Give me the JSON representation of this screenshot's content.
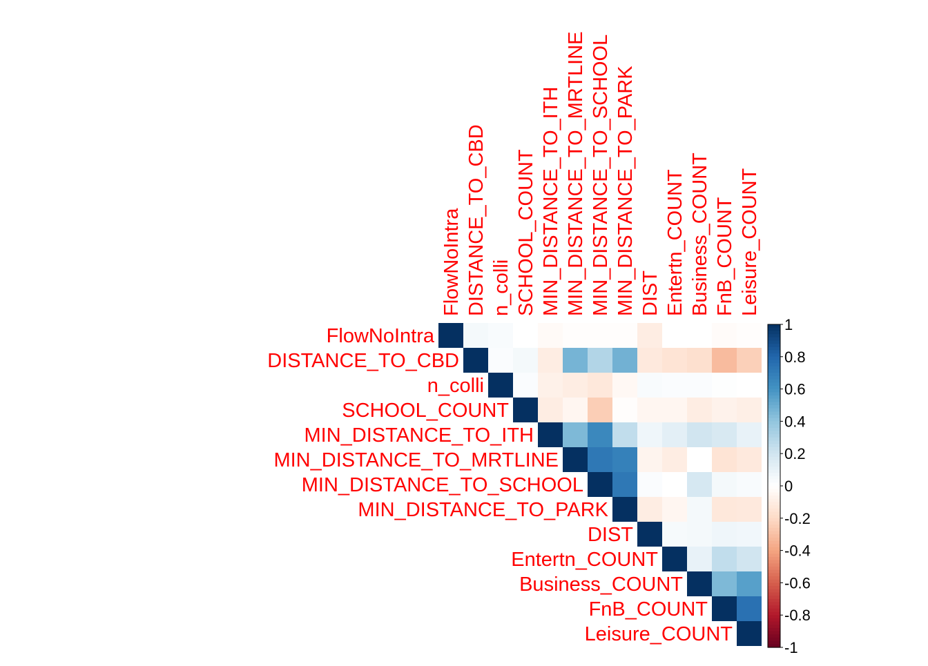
{
  "chart_data": {
    "type": "heatmap",
    "variant": "upper-triangle correlation matrix",
    "variables": [
      "FlowNoIntra",
      "DISTANCE_TO_CBD",
      "n_colli",
      "SCHOOL_COUNT",
      "MIN_DISTANCE_TO_ITH",
      "MIN_DISTANCE_TO_MRTLINE",
      "MIN_DISTANCE_TO_SCHOOL",
      "MIN_DISTANCE_TO_PARK",
      "DIST",
      "Entertn_COUNT",
      "Business_COUNT",
      "FnB_COUNT",
      "Leisure_COUNT"
    ],
    "matrix": [
      [
        1,
        0.05,
        0.03,
        0.0,
        -0.03,
        -0.01,
        -0.01,
        -0.01,
        -0.1,
        0.0,
        0.0,
        -0.02,
        -0.01
      ],
      [
        0.05,
        1,
        0.02,
        0.05,
        -0.1,
        0.47,
        0.3,
        0.48,
        -0.12,
        -0.15,
        -0.17,
        -0.32,
        -0.24
      ],
      [
        0.03,
        0.02,
        1,
        0.02,
        -0.08,
        -0.1,
        -0.13,
        -0.04,
        0.03,
        0.02,
        0.02,
        0.01,
        0.0
      ],
      [
        0.0,
        0.05,
        0.02,
        1,
        -0.1,
        -0.05,
        -0.25,
        -0.01,
        -0.05,
        -0.05,
        -0.1,
        -0.07,
        -0.09
      ],
      [
        -0.03,
        -0.1,
        -0.08,
        -0.1,
        1,
        0.45,
        0.65,
        0.25,
        0.07,
        0.12,
        0.2,
        0.17,
        0.1
      ],
      [
        -0.01,
        0.47,
        -0.1,
        -0.05,
        0.45,
        1,
        0.72,
        0.68,
        -0.06,
        -0.1,
        0.0,
        -0.15,
        -0.12
      ],
      [
        -0.01,
        0.3,
        -0.13,
        -0.25,
        0.65,
        0.72,
        1,
        0.72,
        0.02,
        0.0,
        0.18,
        0.05,
        0.03
      ],
      [
        -0.01,
        0.48,
        -0.04,
        -0.01,
        0.25,
        0.68,
        0.72,
        1,
        -0.1,
        -0.05,
        0.05,
        -0.13,
        -0.12
      ],
      [
        -0.1,
        -0.12,
        0.03,
        -0.05,
        0.07,
        -0.06,
        0.02,
        -0.1,
        1,
        0.04,
        0.05,
        0.07,
        0.06
      ],
      [
        0.0,
        -0.15,
        0.02,
        -0.05,
        0.12,
        -0.1,
        0.0,
        -0.05,
        0.04,
        1,
        0.1,
        0.25,
        0.2
      ],
      [
        0.0,
        -0.17,
        0.02,
        -0.1,
        0.2,
        0.0,
        0.18,
        0.05,
        0.05,
        0.1,
        1,
        0.45,
        0.55
      ],
      [
        -0.02,
        -0.32,
        0.01,
        -0.07,
        0.17,
        -0.15,
        0.05,
        -0.13,
        0.07,
        0.25,
        0.45,
        1,
        0.75
      ],
      [
        -0.01,
        -0.24,
        0.0,
        -0.09,
        0.1,
        -0.12,
        0.03,
        -0.12,
        0.06,
        0.2,
        0.55,
        0.75,
        1
      ]
    ],
    "colorbar": {
      "range": [
        -1,
        1
      ],
      "tick_labels": [
        "1",
        "0.8",
        "0.6",
        "0.4",
        "0.2",
        "0",
        "-0.2",
        "-0.4",
        "-0.6",
        "-0.8",
        "-1"
      ],
      "tick_values": [
        1,
        0.8,
        0.6,
        0.4,
        0.2,
        0,
        -0.2,
        -0.4,
        -0.6,
        -0.8,
        -1
      ]
    },
    "colors": {
      "labels": "#FF0000",
      "positive_end": "#053061",
      "negative_end": "#67001F",
      "zero": "#FFFFFF"
    },
    "legend_placement": "right",
    "grid": false
  }
}
